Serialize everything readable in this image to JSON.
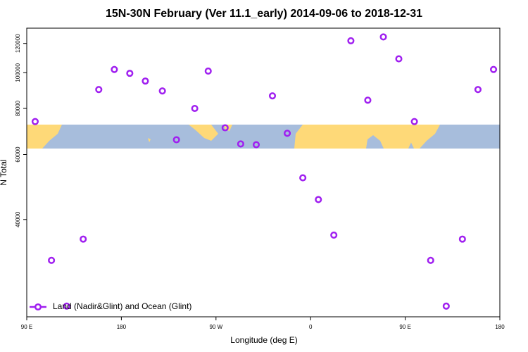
{
  "chart_data": {
    "type": "scatter",
    "title": "15N-30N February (Ver 11.1_early)   2014-09-06 to 2018-12-31",
    "x_label": "Longitude (deg E)",
    "y_label": "N Total",
    "x": [
      98,
      113.5,
      128,
      143.7,
      158.5,
      173.3,
      188,
      202.8,
      219,
      232.4,
      249.8,
      262.6,
      278.7,
      293.5,
      308.3,
      323.7,
      337.8,
      352.6,
      367.4,
      382.1,
      398.3,
      414.4,
      429.2,
      443.9,
      458.7,
      474.2,
      489,
      504.4,
      519.2,
      534
    ],
    "series": [
      {
        "name": "Land (Nadir&Glint) and Ocean (Glint)",
        "color": "#a020f0",
        "values": [
          73700,
          31000,
          23300,
          35400,
          90000,
          102000,
          99600,
          94900,
          89200,
          65800,
          80000,
          101000,
          70900,
          64100,
          63800,
          86500,
          68500,
          51900,
          45300,
          36300,
          122000,
          84200,
          125000,
          109000,
          73700,
          31000,
          23300,
          35400,
          90000,
          102000
        ]
      }
    ],
    "xlim": [
      90,
      540
    ],
    "xticks": [
      {
        "value": 90,
        "label": "90 E"
      },
      {
        "value": 180,
        "label": "180"
      },
      {
        "value": 270,
        "label": "90 W"
      },
      {
        "value": 360,
        "label": "0"
      },
      {
        "value": 450,
        "label": "90 E"
      },
      {
        "value": 540,
        "label": "180"
      }
    ],
    "ylim": [
      21800,
      132000
    ],
    "yticks": [
      40000,
      60000,
      80000,
      100000,
      120000
    ],
    "ylog": true,
    "legend": "bottom-left"
  }
}
